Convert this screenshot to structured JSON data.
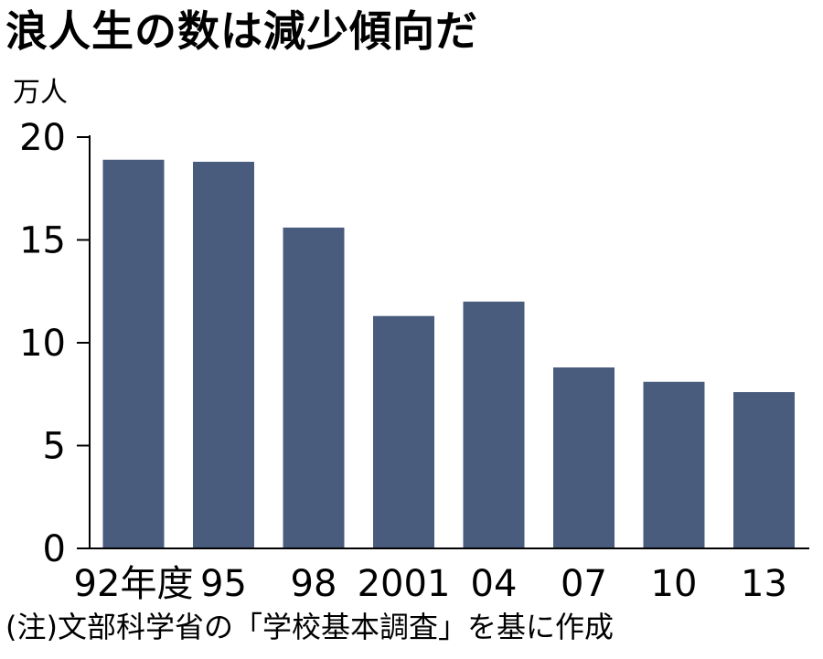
{
  "chart_data": {
    "type": "bar",
    "title": "浪人生の数は減少傾向だ",
    "ylabel": "万人",
    "categories": [
      "92年度",
      "95",
      "98",
      "2001",
      "04",
      "07",
      "10",
      "13"
    ],
    "values": [
      18.9,
      18.8,
      15.6,
      11.3,
      12.0,
      8.8,
      8.1,
      7.6
    ],
    "yticks": [
      0,
      5,
      10,
      15,
      20
    ],
    "ylim": [
      0,
      20
    ],
    "bar_color": "#4a5c7e",
    "grid": false,
    "note": "(注)文部科学省の「学校基本調査」を基に作成"
  }
}
